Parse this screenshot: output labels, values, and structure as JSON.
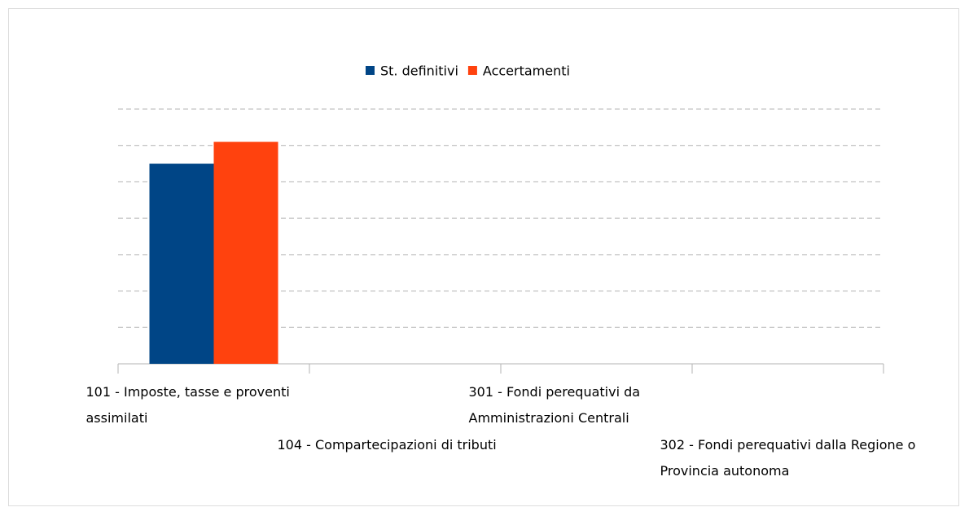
{
  "chart_data": {
    "type": "bar",
    "categories": [
      "101 - Imposte, tasse e proventi assimilati",
      "104 - Compartecipazioni di tributi",
      "301 - Fondi perequativi da Amministrazioni Centrali",
      "302 - Fondi perequativi dalla Regione o Provincia autonoma"
    ],
    "series": [
      {
        "name": "St. definitivi",
        "color": "#004586",
        "values": [
          5.5,
          0,
          0,
          0
        ]
      },
      {
        "name": "Accertamenti",
        "color": "#ff420e",
        "values": [
          6.1,
          0,
          0,
          0
        ]
      }
    ],
    "ylim": [
      0,
      7
    ],
    "yticks": [
      0,
      1,
      2,
      3,
      4,
      5,
      6,
      7
    ],
    "grid": true,
    "legend": "top"
  }
}
